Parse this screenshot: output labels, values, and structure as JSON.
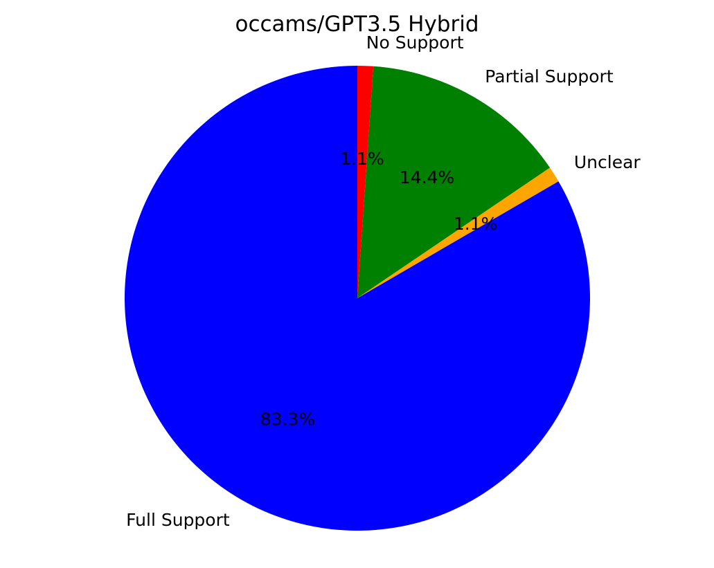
{
  "chart_data": {
    "type": "pie",
    "title": "occams/GPT3.5 Hybrid",
    "slices": [
      {
        "label": "No Support",
        "value": 1.1,
        "pct_label": "1.1%",
        "color": "#ff0000"
      },
      {
        "label": "Partial Support",
        "value": 14.4,
        "pct_label": "14.4%",
        "color": "#008000"
      },
      {
        "label": "Unclear",
        "value": 1.1,
        "pct_label": "1.1%",
        "color": "#ffa500"
      },
      {
        "label": "Full Support",
        "value": 83.3,
        "pct_label": "83.3%",
        "color": "#0000ff"
      }
    ],
    "start_angle_deg": 90,
    "direction": "clockwise"
  }
}
